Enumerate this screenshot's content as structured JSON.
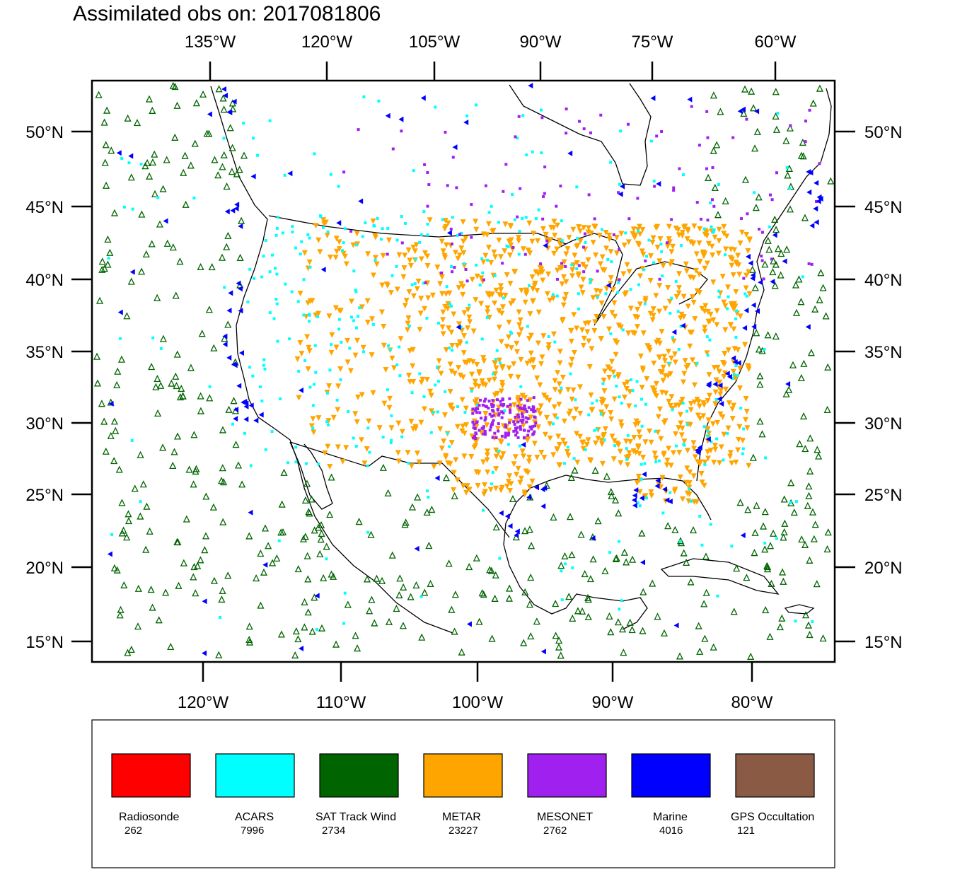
{
  "title": "Assimilated obs on: 2017081806",
  "axes": {
    "top_lon_labels": [
      "135°W",
      "120°W",
      "105°W",
      "90°W",
      "75°W",
      "60°W"
    ],
    "bottom_lon_labels": [
      "120°W",
      "110°W",
      "100°W",
      "90°W",
      "80°W"
    ],
    "left_lat_labels": [
      "50°N",
      "45°N",
      "40°N",
      "35°N",
      "30°N",
      "25°N",
      "20°N",
      "15°N"
    ],
    "right_lat_labels": [
      "50°N",
      "45°N",
      "40°N",
      "35°N",
      "30°N",
      "25°N",
      "20°N",
      "15°N"
    ]
  },
  "legend": [
    {
      "name": "Radiosonde",
      "count": "262",
      "color": "#ff0000"
    },
    {
      "name": "ACARS",
      "count": "7996",
      "color": "#00ffff"
    },
    {
      "name": "SAT Track Wind",
      "count": "2734",
      "color": "#006400"
    },
    {
      "name": "METAR",
      "count": "23227",
      "color": "#ffa500"
    },
    {
      "name": "MESONET",
      "count": "2762",
      "color": "#a020f0"
    },
    {
      "name": "Marine",
      "count": "4016",
      "color": "#0000ff"
    },
    {
      "name": "GPS Occultation",
      "count": "121",
      "color": "#8b5a44"
    }
  ],
  "colors": {
    "land_outline": "#000000",
    "frame": "#000000"
  }
}
